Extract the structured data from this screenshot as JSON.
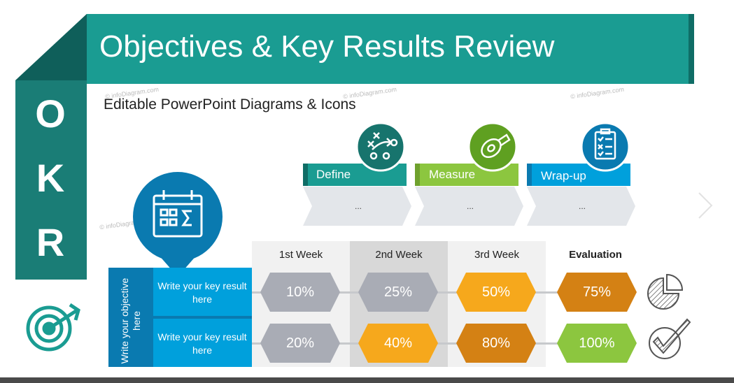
{
  "title": "Objectives & Key Results Review",
  "subtitle": "Editable PowerPoint Diagrams & Icons",
  "watermark": "© infoDiagram.com",
  "okr_letters": [
    "O",
    "K",
    "R"
  ],
  "process": [
    {
      "label": "Define",
      "body": "...",
      "color": "#1a9c92",
      "icon": "strategy-play-icon"
    },
    {
      "label": "Measure",
      "body": "...",
      "color": "#8cc63f",
      "icon": "measuring-tape-icon"
    },
    {
      "label": "Wrap-up",
      "body": "...",
      "color": "#00a0dc",
      "icon": "checklist-icon"
    }
  ],
  "objective_text": "Write your objective here",
  "key_results": [
    "Write your key result here",
    "Write your key result here"
  ],
  "weeks": [
    "1st Week",
    "2nd Week",
    "3rd Week",
    "Evaluation"
  ],
  "rows": [
    {
      "values": [
        "10%",
        "25%",
        "50%",
        "75%"
      ],
      "colors": [
        "#a9acb5",
        "#a9acb5",
        "#f6a81c",
        "#d48114"
      ],
      "end_icon": "pie-chart-icon"
    },
    {
      "values": [
        "20%",
        "40%",
        "80%",
        "100%"
      ],
      "colors": [
        "#a9acb5",
        "#f6a81c",
        "#d48114",
        "#8cc63f"
      ],
      "end_icon": "checkmark-icon"
    }
  ],
  "colors": {
    "teal": "#1a9c92",
    "dark_teal": "#0f6d66",
    "blue": "#00a0dc",
    "dark_blue": "#0a7ab0",
    "green": "#8cc63f",
    "orange": "#f6a81c",
    "dark_orange": "#d48114",
    "grey": "#a9acb5"
  }
}
